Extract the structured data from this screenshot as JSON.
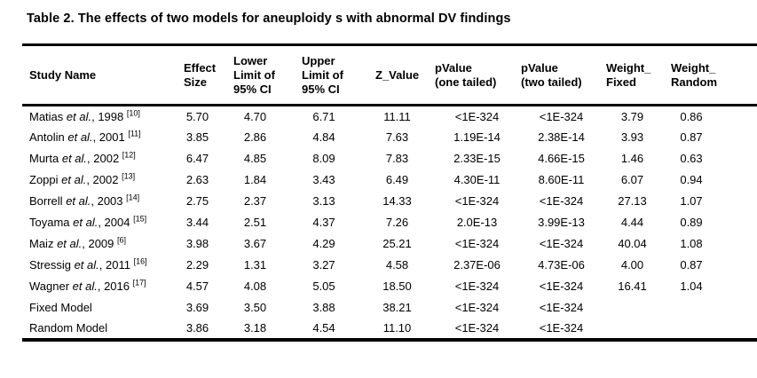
{
  "title": "Table 2. The effects of two models for aneuploidy s with abnormal DV findings",
  "table": {
    "headers": [
      "Study Name",
      "Effect\nSize",
      "Lower\nLimit of\n95% CI",
      "Upper\nLimit of\n95% CI",
      "Z_Value",
      "pValue\n(one tailed)",
      "pValue\n(two tailed)",
      "Weight_\nFixed",
      "Weight_\nRandom"
    ],
    "rows": [
      {
        "pre": "Matias ",
        "etal": "et al.",
        "post": ", 1998 ",
        "ref": "[10]",
        "v": [
          "5.70",
          "4.70",
          "6.71",
          "11.11",
          "<1E-324",
          "<1E-324",
          "3.79",
          "0.86"
        ]
      },
      {
        "pre": "Antolin ",
        "etal": "et al.",
        "post": ", 2001 ",
        "ref": "[11]",
        "v": [
          "3.85",
          "2.86",
          "4.84",
          "7.63",
          "1.19E-14",
          "2.38E-14",
          "3.93",
          "0.87"
        ]
      },
      {
        "pre": "Murta ",
        "etal": "et al.",
        "post": ", 2002 ",
        "ref": "[12]",
        "v": [
          "6.47",
          "4.85",
          "8.09",
          "7.83",
          "2.33E-15",
          "4.66E-15",
          "1.46",
          "0.63"
        ]
      },
      {
        "pre": "Zoppi ",
        "etal": "et al.",
        "post": ", 2002 ",
        "ref": "[13]",
        "v": [
          "2.63",
          "1.84",
          "3.43",
          "6.49",
          "4.30E-11",
          "8.60E-11",
          "6.07",
          "0.94"
        ]
      },
      {
        "pre": "Borrell ",
        "etal": "et al.",
        "post": ", 2003 ",
        "ref": "[14]",
        "v": [
          "2.75",
          "2.37",
          "3.13",
          "14.33",
          "<1E-324",
          "<1E-324",
          "27.13",
          "1.07"
        ]
      },
      {
        "pre": "Toyama ",
        "etal": "et al.",
        "post": ", 2004 ",
        "ref": "[15]",
        "v": [
          "3.44",
          "2.51",
          "4.37",
          "7.26",
          "2.0E-13",
          "3.99E-13",
          "4.44",
          "0.89"
        ]
      },
      {
        "pre": "Maiz ",
        "etal": "et al.",
        "post": ", 2009 ",
        "ref": "[6]",
        "v": [
          "3.98",
          "3.67",
          "4.29",
          "25.21",
          "<1E-324",
          "<1E-324",
          "40.04",
          "1.08"
        ]
      },
      {
        "pre": "Stressig ",
        "etal": "et al.",
        "post": ", 2011 ",
        "ref": "[16]",
        "v": [
          "2.29",
          "1.31",
          "3.27",
          "4.58",
          "2.37E-06",
          "4.73E-06",
          "4.00",
          "0.87"
        ]
      },
      {
        "pre": "Wagner ",
        "etal": "et al.",
        "post": ", 2016 ",
        "ref": "[17]",
        "v": [
          "4.57",
          "4.08",
          "5.05",
          "18.50",
          "<1E-324",
          "<1E-324",
          "16.41",
          "1.04"
        ]
      },
      {
        "pre": "Fixed Model",
        "etal": "",
        "post": "",
        "ref": "",
        "v": [
          "3.69",
          "3.50",
          "3.88",
          "38.21",
          "<1E-324",
          "<1E-324",
          "",
          ""
        ]
      },
      {
        "pre": "Random Model",
        "etal": "",
        "post": "",
        "ref": "",
        "v": [
          "3.86",
          "3.18",
          "4.54",
          "11.10",
          "<1E-324",
          "<1E-324",
          "",
          ""
        ]
      }
    ]
  }
}
